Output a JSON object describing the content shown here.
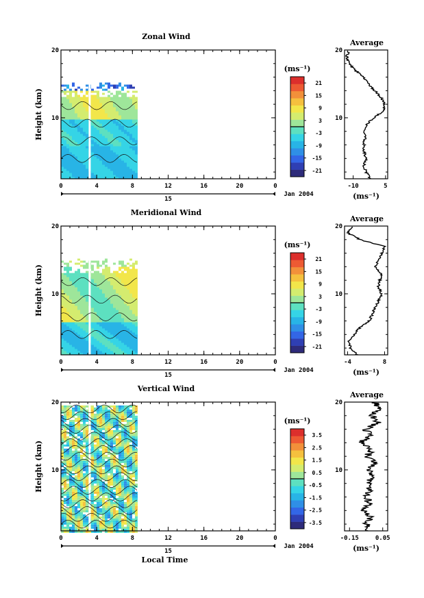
{
  "chart_data": [
    {
      "type": "heatmap",
      "title": "Zonal Wind",
      "ylabel": "Height (km)",
      "xlabel": "",
      "xlim": [
        0,
        24
      ],
      "ylim": [
        1,
        20
      ],
      "x_ticks": [
        "0",
        "4",
        "8",
        "12",
        "16",
        "20",
        "0"
      ],
      "y_ticks": [
        "10",
        "20"
      ],
      "date_axis": {
        "day": "15",
        "month": "Jan 2004"
      },
      "data_x_range": [
        0,
        8.5
      ],
      "data_y_range": [
        1,
        15.2
      ],
      "colorbar": {
        "unit": "(ms⁻¹)",
        "ticks": [
          "21",
          "15",
          "9",
          "3",
          "-3",
          "-9",
          "-15",
          "-21"
        ],
        "min": -24,
        "max": 24
      },
      "profile": {
        "title": "Average",
        "xlabel": "(ms⁻¹)",
        "x_ticks": [
          "-10",
          "5"
        ],
        "xlim": [
          -14,
          6
        ],
        "y_ticks": [
          "10",
          "20"
        ],
        "heights": [
          1,
          2,
          3,
          4,
          5,
          6,
          7,
          8,
          9,
          10,
          11,
          12,
          13,
          14,
          15,
          16,
          17,
          18,
          19,
          20
        ],
        "values": [
          -2,
          -4,
          -5,
          -4,
          -5,
          -5,
          -4.5,
          -5,
          -4,
          -0.5,
          4,
          4.5,
          3,
          0,
          -3,
          -5,
          -9,
          -12,
          -13,
          -12
        ]
      }
    },
    {
      "type": "heatmap",
      "title": "Meridional Wind",
      "ylabel": "Height (km)",
      "xlabel": "",
      "xlim": [
        0,
        24
      ],
      "ylim": [
        1,
        20
      ],
      "x_ticks": [
        "0",
        "4",
        "8",
        "12",
        "16",
        "20",
        "0"
      ],
      "y_ticks": [
        "10",
        "20"
      ],
      "date_axis": {
        "day": "15",
        "month": "Jan 2004"
      },
      "data_x_range": [
        0,
        8.5
      ],
      "data_y_range": [
        1,
        15.2
      ],
      "colorbar": {
        "unit": "(ms⁻¹)",
        "ticks": [
          "21",
          "15",
          "9",
          "3",
          "-3",
          "-9",
          "-15",
          "-21"
        ],
        "min": -24,
        "max": 24
      },
      "profile": {
        "title": "Average",
        "xlabel": "(ms⁻¹)",
        "x_ticks": [
          "-4",
          "8"
        ],
        "xlim": [
          -5,
          9
        ],
        "y_ticks": [
          "10",
          "20"
        ],
        "heights": [
          1,
          2,
          3,
          4,
          5,
          6,
          7,
          8,
          9,
          10,
          11,
          12,
          13,
          14,
          15,
          16,
          17,
          18,
          19,
          20
        ],
        "values": [
          -1,
          -3,
          -3.5,
          -2,
          0,
          3,
          4,
          5,
          6,
          7,
          6,
          6.5,
          7,
          5,
          6,
          7,
          8,
          0,
          -4,
          -2
        ]
      }
    },
    {
      "type": "heatmap",
      "title": "Vertical Wind",
      "ylabel": "Height (km)",
      "xlabel": "Local Time",
      "xlim": [
        0,
        24
      ],
      "ylim": [
        1,
        20
      ],
      "x_ticks": [
        "0",
        "4",
        "8",
        "12",
        "16",
        "20",
        "0"
      ],
      "y_ticks": [
        "10",
        "20"
      ],
      "date_axis": {
        "day": "15",
        "month": "Jan 2004"
      },
      "data_x_range": [
        0,
        8.5
      ],
      "data_y_range": [
        1,
        19.5
      ],
      "colorbar": {
        "unit": "(ms⁻¹)",
        "ticks": [
          "3.5",
          "2.5",
          "1.5",
          "0.5",
          "-0.5",
          "-1.5",
          "-2.5",
          "-3.5"
        ],
        "min": -4,
        "max": 4
      },
      "profile": {
        "title": "Average",
        "xlabel": "(ms⁻¹)",
        "x_ticks": [
          "-0.15",
          "0.05"
        ],
        "xlim": [
          -0.18,
          0.08
        ],
        "y_ticks": [
          "10",
          "20"
        ],
        "heights": [
          1,
          2,
          3,
          4,
          5,
          6,
          7,
          8,
          9,
          10,
          11,
          12,
          13,
          14,
          15,
          16,
          17,
          18,
          19,
          20
        ],
        "values": [
          -0.03,
          -0.05,
          -0.02,
          -0.06,
          -0.03,
          -0.05,
          -0.02,
          -0.04,
          -0.01,
          -0.03,
          0.0,
          -0.04,
          -0.02,
          -0.08,
          -0.03,
          -0.05,
          0.02,
          -0.01,
          0.03,
          0.0
        ]
      }
    }
  ]
}
